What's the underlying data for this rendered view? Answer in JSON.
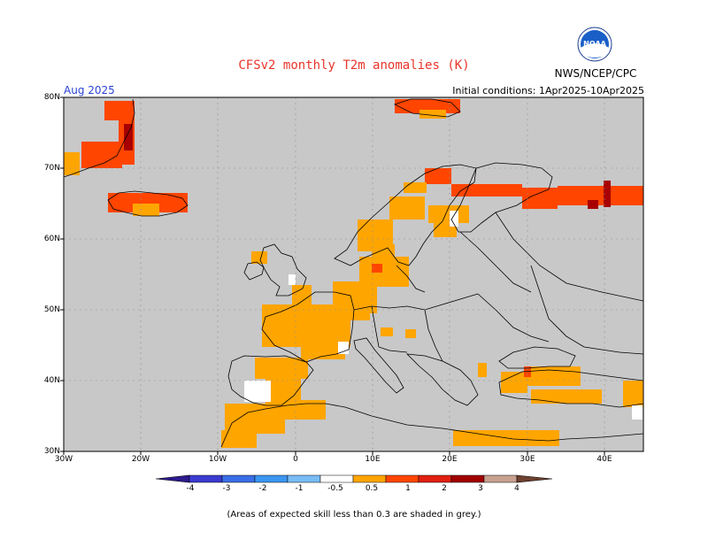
{
  "header": {
    "title": "CFSv2 monthly T2m anomalies (K)",
    "agency": "NWS/NCEP/CPC",
    "logo_text": "NOAA",
    "month": "Aug 2025",
    "initial_conditions": "Initial conditions: 1Apr2025-10Apr2025"
  },
  "map": {
    "background_color": "#c8c8c8",
    "land_stroke": "#000000",
    "lat_ticks": [
      "30N",
      "40N",
      "50N",
      "60N",
      "70N",
      "80N"
    ],
    "lon_ticks": [
      "30W",
      "20W",
      "10W",
      "0",
      "10E",
      "20E",
      "30E",
      "40E"
    ]
  },
  "colorbar": {
    "labels": [
      "-4",
      "-3",
      "-2",
      "-1",
      "-0.5",
      "0.5",
      "1",
      "2",
      "3",
      "4"
    ],
    "colors": [
      "#2d1b8e",
      "#3a3ad0",
      "#3a6ee6",
      "#3a96f0",
      "#78bcf6",
      "#ffffff",
      "#ffa500",
      "#ff4500",
      "#e02010",
      "#a00000",
      "#c8a090",
      "#6e4030"
    ]
  },
  "footnote": "(Areas of expected skill less than 0.3 are shaded in grey.)",
  "anomaly_colors": {
    "orange": "#ffa500",
    "red": "#ff4500",
    "darkred": "#a80000",
    "white": "#ffffff"
  }
}
